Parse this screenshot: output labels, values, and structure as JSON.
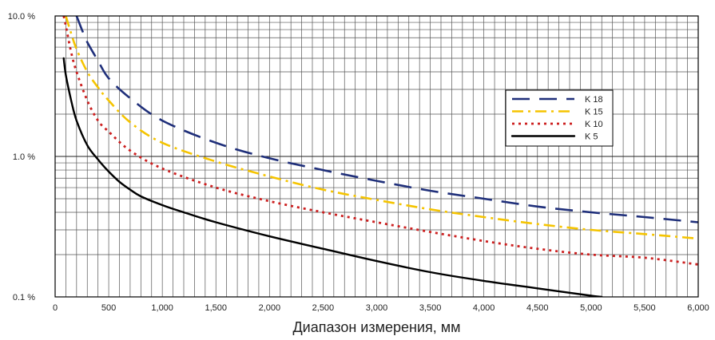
{
  "chart_data": {
    "type": "line",
    "title": "",
    "xlabel": "Диапазон измерения, мм",
    "ylabel": "",
    "xscale": "linear",
    "yscale": "log",
    "xlim": [
      0,
      6000
    ],
    "ylim": [
      0.1,
      10
    ],
    "grid": true,
    "legend_position": "top-right",
    "x_ticks": [
      0,
      500,
      1000,
      1500,
      2000,
      2500,
      3000,
      3500,
      4000,
      4500,
      5000,
      5500,
      6000
    ],
    "x_tick_labels": [
      "0",
      "500",
      "1,000",
      "1,500",
      "2,000",
      "2,500",
      "3,000",
      "3,500",
      "4,000",
      "4,500",
      "5,000",
      "5,500",
      "6,000"
    ],
    "y_ticks": [
      0.1,
      1,
      10
    ],
    "y_tick_labels": [
      "0.1 %",
      "1.0 %",
      "10.0 %"
    ],
    "series": [
      {
        "name": "K 18",
        "color": "#1f2f7a",
        "style": "long-dash",
        "x": [
          200,
          250,
          300,
          400,
          500,
          700,
          1000,
          1500,
          2000,
          2500,
          3000,
          3500,
          4000,
          4500,
          5000,
          5500,
          6000
        ],
        "y": [
          10,
          8,
          6.5,
          4.8,
          3.6,
          2.6,
          1.8,
          1.25,
          0.97,
          0.8,
          0.67,
          0.57,
          0.5,
          0.44,
          0.4,
          0.37,
          0.34
        ]
      },
      {
        "name": "K 15",
        "color": "#f5c400",
        "style": "dash-dot",
        "x": [
          100,
          150,
          200,
          300,
          400,
          500,
          700,
          1000,
          1500,
          2000,
          2500,
          3000,
          3500,
          4000,
          4500,
          5000,
          5500,
          6000
        ],
        "y": [
          10,
          7.5,
          5.8,
          4,
          3.1,
          2.5,
          1.75,
          1.25,
          0.92,
          0.72,
          0.58,
          0.49,
          0.42,
          0.37,
          0.33,
          0.3,
          0.28,
          0.26
        ]
      },
      {
        "name": "K 10",
        "color": "#cc1f1f",
        "style": "dotted",
        "x": [
          80,
          100,
          150,
          200,
          300,
          400,
          500,
          700,
          1000,
          1500,
          2000,
          2500,
          3000,
          3500,
          4000,
          4500,
          5000,
          5500,
          6000
        ],
        "y": [
          10,
          8.5,
          5.5,
          4,
          2.5,
          1.8,
          1.5,
          1.1,
          0.82,
          0.6,
          0.48,
          0.4,
          0.34,
          0.29,
          0.25,
          0.22,
          0.2,
          0.19,
          0.17
        ]
      },
      {
        "name": "K 5",
        "color": "#000000",
        "style": "solid",
        "x": [
          80,
          100,
          150,
          200,
          300,
          400,
          500,
          600,
          700,
          800,
          1000,
          1200,
          1500,
          2000,
          2500,
          3000,
          3500,
          4000,
          4500,
          5000,
          5100
        ],
        "y": [
          5,
          3.8,
          2.5,
          1.8,
          1.2,
          0.95,
          0.78,
          0.66,
          0.58,
          0.52,
          0.45,
          0.4,
          0.34,
          0.27,
          0.22,
          0.18,
          0.15,
          0.13,
          0.115,
          0.102,
          0.1
        ]
      }
    ]
  }
}
